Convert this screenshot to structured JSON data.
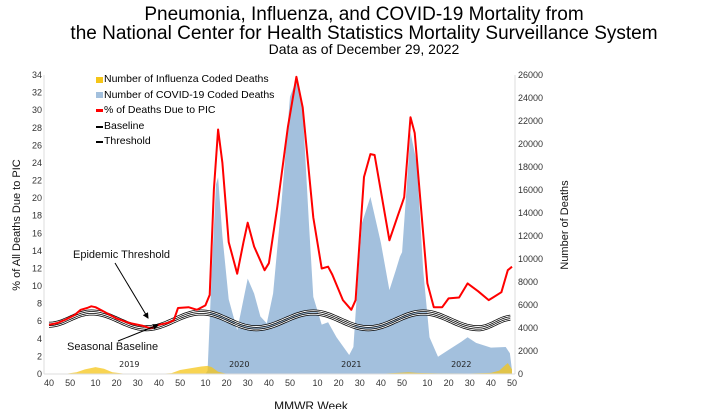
{
  "title": {
    "line1": "Pneumonia, Influenza, and COVID-19 Mortality from",
    "line2": "the National Center for Health Statistics Mortality Surveillance System",
    "line3": "Data as of December 29, 2022"
  },
  "chart_data": {
    "type": "line",
    "xlabel": "MMWR Week",
    "ylabel_left": "% of All Deaths Due to PIC",
    "ylabel_right": "Number of Deaths",
    "ylim_left": [
      0,
      34
    ],
    "ylim_right": [
      0,
      26000
    ],
    "yticks_left": [
      "0",
      "2",
      "4",
      "6",
      "8",
      "10",
      "12",
      "14",
      "16",
      "18",
      "20",
      "22",
      "24",
      "26",
      "28",
      "30",
      "32",
      "34"
    ],
    "yticks_right": [
      "0",
      "2000",
      "4000",
      "6000",
      "8000",
      "10000",
      "12000",
      "14000",
      "16000",
      "18000",
      "20000",
      "22000",
      "24000",
      "26000"
    ],
    "x_range": [
      "2018-40",
      "2022-50"
    ],
    "x_ticks": [
      {
        "week": "2018-40",
        "label": "40"
      },
      {
        "week": "2018-50",
        "label": "50"
      },
      {
        "week": "2019-10",
        "label": "10"
      },
      {
        "week": "2019-20",
        "label": "20"
      },
      {
        "week": "2019-30",
        "label": "30"
      },
      {
        "week": "2019-40",
        "label": "40"
      },
      {
        "week": "2019-50",
        "label": "50"
      },
      {
        "week": "2020-10",
        "label": "10"
      },
      {
        "week": "2020-20",
        "label": "20"
      },
      {
        "week": "2020-30",
        "label": "30"
      },
      {
        "week": "2020-40",
        "label": "40"
      },
      {
        "week": "2020-50",
        "label": "50"
      },
      {
        "week": "2021-10",
        "label": "10"
      },
      {
        "week": "2021-20",
        "label": "20"
      },
      {
        "week": "2021-30",
        "label": "30"
      },
      {
        "week": "2021-40",
        "label": "40"
      },
      {
        "week": "2021-50",
        "label": "50"
      },
      {
        "week": "2022-10",
        "label": "10"
      },
      {
        "week": "2022-20",
        "label": "20"
      },
      {
        "week": "2022-30",
        "label": "30"
      },
      {
        "week": "2022-40",
        "label": "40"
      },
      {
        "week": "2022-50",
        "label": "50"
      }
    ],
    "year_labels": [
      {
        "week": "2019-26",
        "label": "2019"
      },
      {
        "week": "2020-26",
        "label": "2020"
      },
      {
        "week": "2021-26",
        "label": "2021"
      },
      {
        "week": "2022-26",
        "label": "2022"
      }
    ],
    "grid": false,
    "legend": "top-left",
    "series": [
      {
        "name": "Number of Influenza Coded Deaths",
        "kind": "area",
        "axis": "right",
        "color": "#f5c518",
        "points": [
          [
            "2018-40",
            0
          ],
          [
            "2018-48",
            20
          ],
          [
            "2019-1",
            150
          ],
          [
            "2019-5",
            400
          ],
          [
            "2019-10",
            600
          ],
          [
            "2019-14",
            450
          ],
          [
            "2019-18",
            150
          ],
          [
            "2019-24",
            20
          ],
          [
            "2019-40",
            10
          ],
          [
            "2019-46",
            80
          ],
          [
            "2019-50",
            350
          ],
          [
            "2020-3",
            500
          ],
          [
            "2020-8",
            650
          ],
          [
            "2020-11",
            700
          ],
          [
            "2020-13",
            600
          ],
          [
            "2020-16",
            200
          ],
          [
            "2020-20",
            30
          ],
          [
            "2020-30",
            10
          ],
          [
            "2021-40",
            20
          ],
          [
            "2021-50",
            120
          ],
          [
            "2022-1",
            150
          ],
          [
            "2022-5",
            100
          ],
          [
            "2022-15",
            50
          ],
          [
            "2022-30",
            40
          ],
          [
            "2022-40",
            100
          ],
          [
            "2022-44",
            300
          ],
          [
            "2022-47",
            800
          ],
          [
            "2022-48",
            950
          ],
          [
            "2022-50",
            400
          ]
        ]
      },
      {
        "name": "Number of COVID-19 Coded Deaths",
        "kind": "area",
        "axis": "right",
        "color": "#a3c0dd",
        "points": [
          [
            "2020-10",
            0
          ],
          [
            "2020-11",
            300
          ],
          [
            "2020-13",
            9000
          ],
          [
            "2020-15",
            16500
          ],
          [
            "2020-16",
            17100
          ],
          [
            "2020-18",
            12000
          ],
          [
            "2020-21",
            6500
          ],
          [
            "2020-25",
            3800
          ],
          [
            "2020-28",
            6500
          ],
          [
            "2020-30",
            8300
          ],
          [
            "2020-33",
            7000
          ],
          [
            "2020-36",
            5000
          ],
          [
            "2020-39",
            4400
          ],
          [
            "2020-42",
            7000
          ],
          [
            "2020-46",
            15000
          ],
          [
            "2020-50",
            24100
          ],
          [
            "2020-53",
            25600
          ],
          [
            "2021-3",
            23000
          ],
          [
            "2021-6",
            13000
          ],
          [
            "2021-8",
            6700
          ],
          [
            "2021-12",
            4300
          ],
          [
            "2021-15",
            4500
          ],
          [
            "2021-19",
            3200
          ],
          [
            "2021-25",
            1650
          ],
          [
            "2021-27",
            2350
          ],
          [
            "2021-29",
            8000
          ],
          [
            "2021-31",
            13100
          ],
          [
            "2021-35",
            15400
          ],
          [
            "2021-40",
            11400
          ],
          [
            "2021-44",
            7300
          ],
          [
            "2021-47",
            9000
          ],
          [
            "2021-49",
            10200
          ],
          [
            "2021-50",
            10600
          ],
          [
            "2022-2",
            21000
          ],
          [
            "2022-5",
            18300
          ],
          [
            "2022-8",
            9000
          ],
          [
            "2022-11",
            3200
          ],
          [
            "2022-15",
            1500
          ],
          [
            "2022-20",
            2100
          ],
          [
            "2022-26",
            2800
          ],
          [
            "2022-29",
            3200
          ],
          [
            "2022-33",
            2700
          ],
          [
            "2022-40",
            2300
          ],
          [
            "2022-47",
            2350
          ],
          [
            "2022-49",
            1800
          ],
          [
            "2022-50",
            300
          ]
        ]
      },
      {
        "name": "% of Deaths Due to PIC",
        "kind": "line",
        "axis": "left",
        "color": "#ff0000",
        "points": [
          [
            "2018-40",
            5.6
          ],
          [
            "2018-44",
            5.8
          ],
          [
            "2018-48",
            6.2
          ],
          [
            "2018-52",
            6.7
          ],
          [
            "2019-3",
            7.3
          ],
          [
            "2019-6",
            7.5
          ],
          [
            "2019-8",
            7.7
          ],
          [
            "2019-10",
            7.6
          ],
          [
            "2019-14",
            7.1
          ],
          [
            "2019-20",
            6.3
          ],
          [
            "2019-26",
            5.8
          ],
          [
            "2019-32",
            5.5
          ],
          [
            "2019-36",
            5.2
          ],
          [
            "2019-40",
            5.6
          ],
          [
            "2019-44",
            5.8
          ],
          [
            "2019-47",
            6.1
          ],
          [
            "2019-49",
            7.5
          ],
          [
            "2020-2",
            7.6
          ],
          [
            "2020-6",
            7.3
          ],
          [
            "2020-10",
            7.8
          ],
          [
            "2020-12",
            9.0
          ],
          [
            "2020-14",
            21.0
          ],
          [
            "2020-16",
            27.8
          ],
          [
            "2020-18",
            24.0
          ],
          [
            "2020-21",
            15.0
          ],
          [
            "2020-25",
            11.4
          ],
          [
            "2020-28",
            15.0
          ],
          [
            "2020-30",
            17.2
          ],
          [
            "2020-33",
            14.5
          ],
          [
            "2020-38",
            11.8
          ],
          [
            "2020-40",
            12.6
          ],
          [
            "2020-44",
            19.0
          ],
          [
            "2020-49",
            28.1
          ],
          [
            "2020-51",
            30.9
          ],
          [
            "2020-53",
            33.8
          ],
          [
            "2021-3",
            30.3
          ],
          [
            "2021-8",
            17.8
          ],
          [
            "2021-12",
            12.0
          ],
          [
            "2021-15",
            12.2
          ],
          [
            "2021-17",
            11.3
          ],
          [
            "2021-22",
            8.4
          ],
          [
            "2021-26",
            7.3
          ],
          [
            "2021-28",
            8.4
          ],
          [
            "2021-32",
            22.4
          ],
          [
            "2021-35",
            25.0
          ],
          [
            "2021-37",
            24.9
          ],
          [
            "2021-44",
            15.2
          ],
          [
            "2021-48",
            18.0
          ],
          [
            "2021-50",
            19.4
          ],
          [
            "2021-51",
            20.1
          ],
          [
            "2022-2",
            29.2
          ],
          [
            "2022-4",
            27.4
          ],
          [
            "2022-10",
            10.3
          ],
          [
            "2022-13",
            7.6
          ],
          [
            "2022-17",
            7.6
          ],
          [
            "2022-20",
            8.6
          ],
          [
            "2022-25",
            8.7
          ],
          [
            "2022-29",
            10.3
          ],
          [
            "2022-34",
            9.4
          ],
          [
            "2022-39",
            8.4
          ],
          [
            "2022-41",
            8.7
          ],
          [
            "2022-45",
            9.3
          ],
          [
            "2022-48",
            11.8
          ],
          [
            "2022-50",
            12.2
          ]
        ]
      },
      {
        "name": "Baseline",
        "kind": "smooth",
        "axis": "left",
        "color": "#000000",
        "points": [
          [
            "2018-40",
            5.4
          ],
          [
            "2019-8",
            6.8
          ],
          [
            "2019-34",
            5.0
          ],
          [
            "2020-8",
            6.8
          ],
          [
            "2020-34",
            5.0
          ],
          [
            "2021-8",
            6.8
          ],
          [
            "2021-34",
            5.0
          ],
          [
            "2022-8",
            6.8
          ],
          [
            "2022-34",
            5.0
          ],
          [
            "2022-50",
            6.2
          ]
        ]
      },
      {
        "name": "Threshold",
        "kind": "smooth",
        "axis": "left",
        "color": "#000000",
        "points": [
          [
            "2018-40",
            5.8
          ],
          [
            "2019-8",
            7.2
          ],
          [
            "2019-34",
            5.4
          ],
          [
            "2020-8",
            7.2
          ],
          [
            "2020-34",
            5.4
          ],
          [
            "2021-8",
            7.2
          ],
          [
            "2021-34",
            5.4
          ],
          [
            "2022-8",
            7.2
          ],
          [
            "2022-34",
            5.4
          ],
          [
            "2022-50",
            6.6
          ]
        ]
      }
    ],
    "annotations": [
      {
        "text": "Epidemic Threshold",
        "target": "Threshold"
      },
      {
        "text": "Seasonal Baseline",
        "target": "Baseline"
      }
    ]
  }
}
